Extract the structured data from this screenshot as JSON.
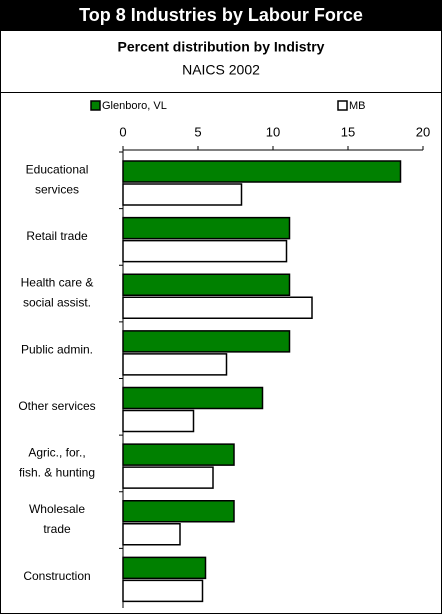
{
  "chart_data": {
    "type": "hbar",
    "title": "Top 8 Industries by Labour Force",
    "subtitle": "Percent distribution by Indistry",
    "note": "NAICS 2002",
    "categories": [
      [
        "Educational",
        "services"
      ],
      [
        "Retail trade"
      ],
      [
        "Health care &",
        "social assist."
      ],
      [
        "Public admin."
      ],
      [
        "Other services"
      ],
      [
        "Agric., for.,",
        "fish. & hunting"
      ],
      [
        "Wholesale",
        "trade"
      ],
      [
        "Construction"
      ]
    ],
    "series": [
      {
        "name": "Glenboro, VL",
        "color": "#008000",
        "values": [
          18.5,
          11.1,
          11.1,
          11.1,
          9.3,
          7.4,
          7.4,
          5.5
        ]
      },
      {
        "name": "MB",
        "color": "#ffffff",
        "values": [
          7.9,
          10.9,
          12.6,
          6.9,
          4.7,
          6.0,
          3.8,
          5.3
        ]
      }
    ],
    "xlim": [
      0,
      20
    ],
    "xticks": [
      0,
      5,
      10,
      15,
      20
    ],
    "legend": "top",
    "grid": false
  }
}
